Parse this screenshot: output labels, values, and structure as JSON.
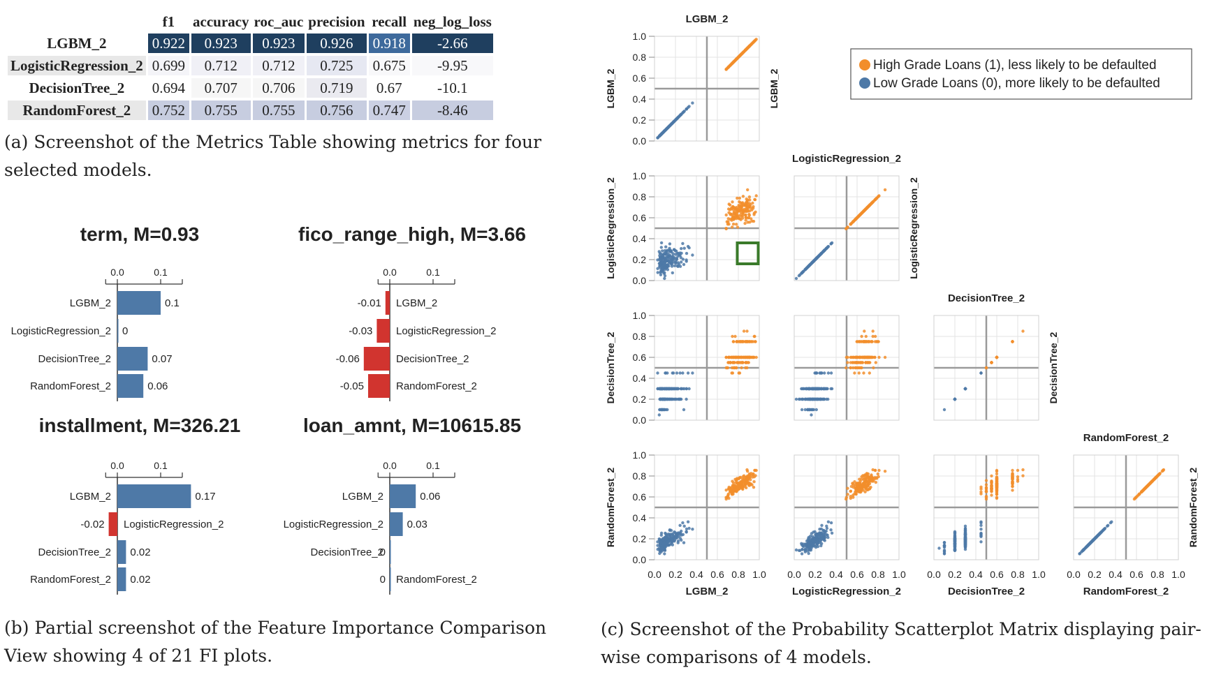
{
  "metrics_table": {
    "columns": [
      "",
      "f1",
      "accuracy",
      "roc_auc",
      "precision",
      "recall",
      "neg_log_loss"
    ],
    "rows": [
      {
        "model": "LGBM_2",
        "values": [
          "0.922",
          "0.923",
          "0.923",
          "0.926",
          "0.918",
          "-2.66"
        ],
        "shades": [
          "#1f3f5f",
          "#1f3f5f",
          "#1f3f5f",
          "#1f3f5f",
          "#3e6a9c",
          "#1f3f5f"
        ]
      },
      {
        "model": "LogisticRegression_2",
        "values": [
          "0.699",
          "0.712",
          "0.712",
          "0.725",
          "0.675",
          "-9.95"
        ],
        "shades": [
          "#f4f4f8",
          "#f0f0f6",
          "#f0f0f6",
          "#e6e8f2",
          "#f8f8fa",
          "#f8f8fa"
        ]
      },
      {
        "model": "DecisionTree_2",
        "values": [
          "0.694",
          "0.707",
          "0.706",
          "0.719",
          "0.67",
          "-10.1"
        ],
        "shades": [
          "#ffffff",
          "#f6f6f6",
          "#f6f6f6",
          "#eaeaf0",
          "#ffffff",
          "#ffffff"
        ]
      },
      {
        "model": "RandomForest_2",
        "values": [
          "0.752",
          "0.755",
          "0.755",
          "0.756",
          "0.747",
          "-8.46"
        ],
        "shades": [
          "#c7cde0",
          "#c7cde0",
          "#c7cde0",
          "#c7cde0",
          "#cbd0e3",
          "#c7cde0"
        ]
      }
    ],
    "rowhead_shades": [
      "#ffffff",
      "#e8e8e8",
      "#ffffff",
      "#e8e8e8"
    ],
    "caption_a_line1": "(a) Screenshot of the Metrics Table showing metrics for four",
    "caption_a_line2": "selected models."
  },
  "captions": {
    "b_line1": "(b) Partial screenshot of the Feature Importance Comparison",
    "b_line2": "View showing 4 of 21 FI plots.",
    "c_line1": "(c) Screenshot of the Probability Scatterplot Matrix displaying pair-",
    "c_line2": "wise comparisons of 4 models."
  },
  "colors": {
    "positive_bar": "#4e79a7",
    "negative_bar": "#d1342f",
    "orange": "#f28e2b",
    "blue": "#4e79a7",
    "selection_box": "#3a7a2a",
    "table_dark": "#1f3f5f"
  },
  "chart_data": [
    {
      "type": "bar",
      "title": "term, M=0.93",
      "categories": [
        "LGBM_2",
        "LogisticRegression_2",
        "DecisionTree_2",
        "RandomForest_2"
      ],
      "values": [
        0.1,
        0,
        0.07,
        0.06
      ],
      "labels": [
        "0.1",
        "0",
        "0.07",
        "0.06"
      ],
      "xticks": [
        "0.0",
        "0.1"
      ]
    },
    {
      "type": "bar",
      "title": "fico_range_high, M=3.66",
      "categories": [
        "LGBM_2",
        "LogisticRegression_2",
        "DecisionTree_2",
        "RandomForest_2"
      ],
      "values": [
        -0.01,
        -0.03,
        -0.06,
        -0.05
      ],
      "labels": [
        "-0.01",
        "-0.03",
        "-0.06",
        "-0.05"
      ],
      "xticks": [
        "0.0",
        "0.1"
      ]
    },
    {
      "type": "bar",
      "title": "installment, M=326.21",
      "categories": [
        "LGBM_2",
        "LogisticRegression_2",
        "DecisionTree_2",
        "RandomForest_2"
      ],
      "values": [
        0.17,
        -0.02,
        0.02,
        0.02
      ],
      "labels": [
        "0.17",
        "-0.02",
        "0.02",
        "0.02"
      ],
      "xticks": [
        "0.0",
        "0.1"
      ]
    },
    {
      "type": "bar",
      "title": "loan_amnt, M=10615.85",
      "categories": [
        "LGBM_2",
        "LogisticRegression_2",
        "DecisionTree_2",
        "RandomForest_2"
      ],
      "values": [
        0.06,
        0.03,
        0,
        0
      ],
      "labels": [
        "0.06",
        "0.03",
        "0",
        "0"
      ],
      "xticks": [
        "0.0",
        "0.1"
      ]
    },
    {
      "type": "scatter",
      "models": [
        "LGBM_2",
        "LogisticRegression_2",
        "DecisionTree_2",
        "RandomForest_2"
      ],
      "xlim": [
        0,
        1
      ],
      "ylim": [
        0,
        1
      ],
      "ticks": [
        "0.0",
        "0.2",
        "0.4",
        "0.6",
        "0.8",
        "1.0"
      ],
      "grid": true,
      "legend": {
        "placement": "top-right",
        "entries": [
          {
            "name": "High Grade Loans (1), less likely to be defaulted",
            "color": "#f28e2b"
          },
          {
            "name": "Low Grade Loans (0), more likely to be defaulted",
            "color": "#4e79a7"
          }
        ]
      }
    }
  ]
}
